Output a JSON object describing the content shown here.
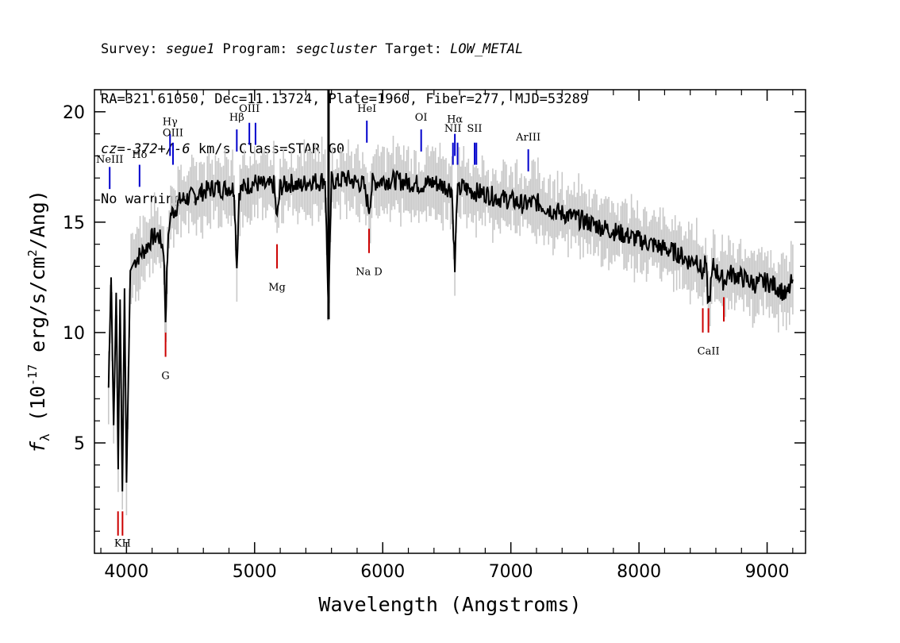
{
  "header": {
    "line1": {
      "survey_label": "Survey: ",
      "survey": "segue1",
      "program_label": " Program: ",
      "program": "segcluster",
      "target_label": " Target: ",
      "target": "LOW_METAL"
    },
    "line2": "RA=321.61050, Dec=11.13724, Plate=1960, Fiber=277, MJD=53289",
    "line3": {
      "cz": "cz=-372+/-6",
      "rest": " km/s Class=STAR G0"
    },
    "line4": "No warnings."
  },
  "chart_data": {
    "type": "line",
    "xlabel": "Wavelength (Angstroms)",
    "ylabel": "f",
    "ylabel_sub": "λ",
    "ylabel_units": " (10",
    "ylabel_exp": "-17",
    "ylabel_units2": " erg/s/cm",
    "ylabel_exp2": "2",
    "ylabel_units3": "/Ang)",
    "xlim": [
      3750,
      9300
    ],
    "ylim": [
      0,
      21
    ],
    "x_ticks": [
      4000,
      5000,
      6000,
      7000,
      8000,
      9000
    ],
    "x_tick_labels": [
      "4000",
      "5000",
      "6000",
      "7000",
      "8000",
      "9000"
    ],
    "y_ticks": [
      5,
      10,
      15,
      20
    ],
    "y_tick_labels": [
      "5",
      "10",
      "15",
      "20"
    ],
    "series": [
      {
        "color": "#000000",
        "x": [
          3860,
          3880,
          3900,
          3920,
          3935,
          3950,
          3968,
          3985,
          4000,
          4030,
          4060,
          4100,
          4150,
          4200,
          4250,
          4290,
          4305,
          4320,
          4340,
          4380,
          4420,
          4480,
          4540,
          4600,
          4650,
          4700,
          4750,
          4800,
          4840,
          4861,
          4880,
          4920,
          4960,
          5000,
          5050,
          5100,
          5150,
          5175,
          5200,
          5250,
          5300,
          5350,
          5400,
          5450,
          5500,
          5550,
          5577,
          5600,
          5650,
          5700,
          5750,
          5800,
          5850,
          5893,
          5920,
          6000,
          6100,
          6200,
          6300,
          6400,
          6500,
          6540,
          6563,
          6580,
          6620,
          6700,
          6800,
          6900,
          7000,
          7100,
          7200,
          7300,
          7400,
          7500,
          7600,
          7700,
          7800,
          7900,
          8000,
          8100,
          8200,
          8300,
          8400,
          8450,
          8498,
          8520,
          8542,
          8580,
          8662,
          8700,
          8800,
          8900,
          9000,
          9100,
          9150,
          9200
        ],
        "y": [
          7.5,
          12.5,
          5.8,
          11.8,
          3.8,
          11.5,
          2.8,
          12.0,
          3.2,
          12.8,
          13.2,
          13.5,
          13.8,
          14.3,
          14.4,
          13.8,
          10.6,
          13.5,
          15.3,
          15.6,
          16.0,
          16.1,
          16.2,
          16.4,
          16.5,
          16.6,
          16.5,
          16.6,
          16.5,
          13.0,
          16.4,
          16.6,
          16.7,
          16.8,
          16.7,
          16.6,
          16.7,
          15.1,
          16.6,
          16.7,
          16.8,
          16.6,
          16.8,
          16.9,
          16.8,
          17.0,
          11.0,
          16.9,
          16.8,
          17.0,
          16.9,
          16.8,
          16.7,
          15.6,
          16.8,
          16.9,
          16.9,
          16.8,
          16.7,
          16.8,
          16.6,
          16.5,
          12.8,
          16.3,
          16.6,
          16.4,
          16.3,
          16.1,
          16.0,
          15.8,
          15.9,
          15.6,
          15.4,
          15.2,
          15.0,
          14.8,
          14.6,
          14.4,
          14.2,
          14.0,
          13.8,
          13.6,
          13.2,
          13.4,
          12.6,
          13.2,
          11.2,
          13.0,
          12.3,
          12.7,
          12.5,
          12.2,
          12.3,
          12.0,
          11.6,
          12.4
        ]
      }
    ],
    "lines": [
      {
        "label": "NeIII",
        "color": "#0000cc",
        "x": 3869,
        "y_bottom": 16.5,
        "y_top": 17.5,
        "label_y": 17.7
      },
      {
        "label": "Hδ",
        "color": "#0000cc",
        "x": 4102,
        "y_bottom": 16.6,
        "y_top": 17.6,
        "label_y": 17.9
      },
      {
        "label": "Hγ",
        "color": "#0000cc",
        "x": 4340,
        "y_bottom": 18.0,
        "y_top": 19.0,
        "label_y": 19.4
      },
      {
        "label": "OIII",
        "color": "#0000cc",
        "x": 4363,
        "y_bottom": 17.6,
        "y_top": 18.6,
        "label_y": 18.9
      },
      {
        "label": "Hβ",
        "color": "#0000cc",
        "x": 4861,
        "y_bottom": 18.2,
        "y_top": 19.2,
        "label_y": 19.6
      },
      {
        "label": "OIII",
        "color": "#0000cc",
        "x": 4959,
        "y_bottom": 18.5,
        "y_top": 19.5,
        "label_y": 20.0
      },
      {
        "label": "",
        "color": "#0000cc",
        "x": 5007,
        "y_bottom": 18.5,
        "y_top": 19.5,
        "label_y": 20.0
      },
      {
        "label": "HeI",
        "color": "#0000cc",
        "x": 5876,
        "y_bottom": 18.6,
        "y_top": 19.6,
        "label_y": 20.0
      },
      {
        "label": "OI",
        "color": "#0000cc",
        "x": 6300,
        "y_bottom": 18.2,
        "y_top": 19.2,
        "label_y": 19.6
      },
      {
        "label": "NII",
        "color": "#0000cc",
        "x": 6548,
        "y_bottom": 17.6,
        "y_top": 18.6,
        "label_y": 19.1
      },
      {
        "label": "Hα",
        "color": "#0000cc",
        "x": 6563,
        "y_bottom": 18.0,
        "y_top": 19.0,
        "label_y": 19.5
      },
      {
        "label": "",
        "color": "#0000cc",
        "x": 6584,
        "y_bottom": 17.6,
        "y_top": 18.6,
        "label_y": 19.1
      },
      {
        "label": "SII",
        "color": "#0000cc",
        "x": 6717,
        "y_bottom": 17.6,
        "y_top": 18.6,
        "label_y": 19.1
      },
      {
        "label": "",
        "color": "#0000cc",
        "x": 6731,
        "y_bottom": 17.6,
        "y_top": 18.6,
        "label_y": 19.1
      },
      {
        "label": "ArIII",
        "color": "#0000cc",
        "x": 7136,
        "y_bottom": 17.3,
        "y_top": 18.3,
        "label_y": 18.7
      },
      {
        "label": "",
        "color": "#cc0000",
        "x": 3934,
        "y_bottom": 0.8,
        "y_top": 1.9,
        "label_y": 0.3
      },
      {
        "label": "KH",
        "color": "#cc0000",
        "x": 3969,
        "y_bottom": 0.8,
        "y_top": 1.9,
        "label_y": 0.3
      },
      {
        "label": "G",
        "color": "#cc0000",
        "x": 4305,
        "y_bottom": 8.9,
        "y_top": 10.0,
        "label_y": 7.9
      },
      {
        "label": "Mg",
        "color": "#cc0000",
        "x": 5175,
        "y_bottom": 12.9,
        "y_top": 14.0,
        "label_y": 11.9
      },
      {
        "label": "Na D",
        "color": "#cc0000",
        "x": 5893,
        "y_bottom": 13.6,
        "y_top": 14.7,
        "label_y": 12.6
      },
      {
        "label": "",
        "color": "#cc0000",
        "x": 8498,
        "y_bottom": 10.0,
        "y_top": 11.1,
        "label_y": 9.0
      },
      {
        "label": "CaII",
        "color": "#cc0000",
        "x": 8542,
        "y_bottom": 10.0,
        "y_top": 11.1,
        "label_y": 9.0
      },
      {
        "label": "",
        "color": "#cc0000",
        "x": 8662,
        "y_bottom": 10.5,
        "y_top": 11.6,
        "label_y": 9.5
      }
    ]
  }
}
